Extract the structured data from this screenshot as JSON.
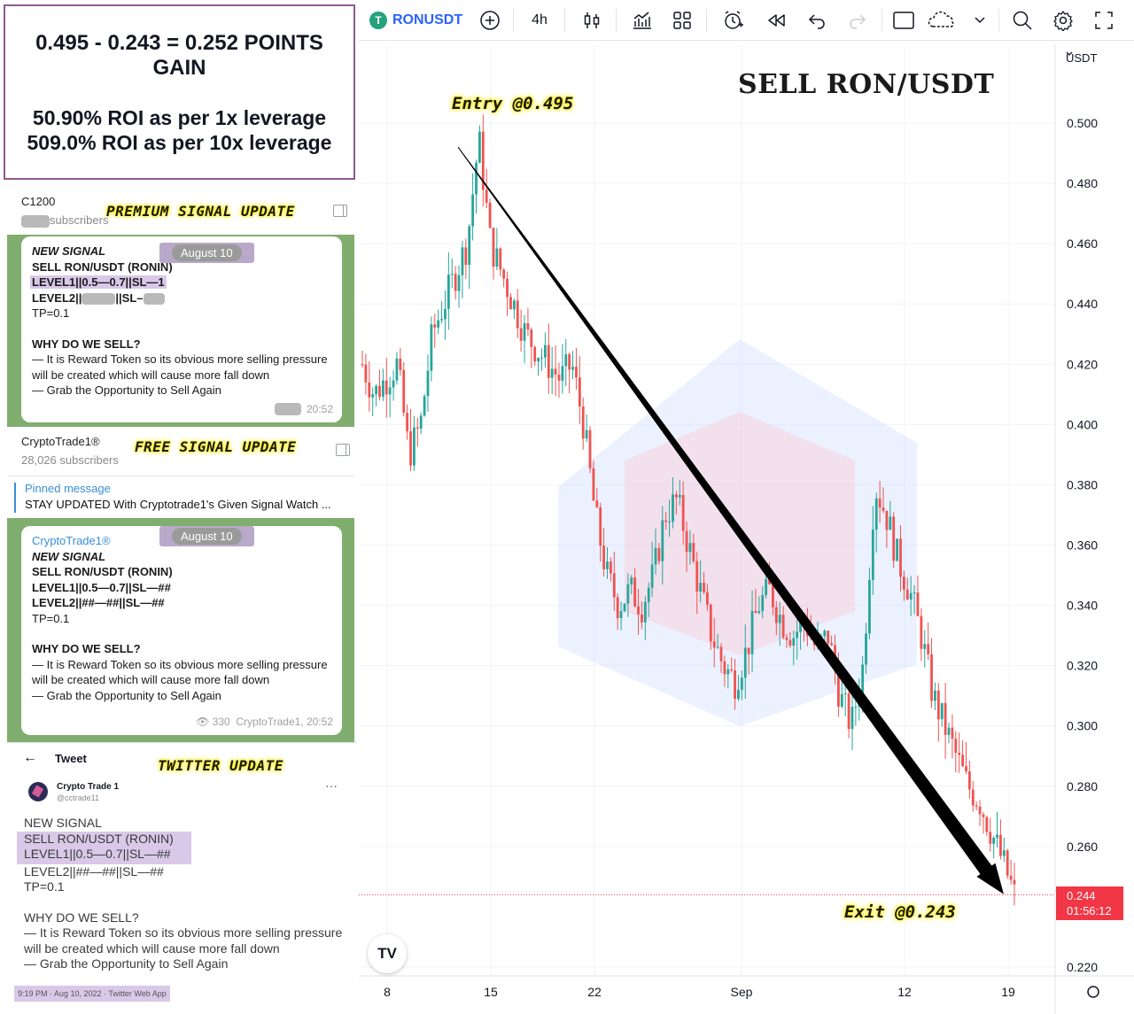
{
  "summary": {
    "line1": "0.495 - 0.243 = 0.252 POINTS GAIN",
    "line3": "50.90% ROI as per 1x leverage",
    "line4": "509.0% ROI as per 10x leverage"
  },
  "premium": {
    "channel": "C1200",
    "subscribers_label": "subscribers",
    "overlay": "PREMIUM SIGNAL UPDATE",
    "date": "August 10",
    "lines": [
      "NEW SIGNAL",
      "SELL RON/USDT (RONIN)",
      "LEVEL1||0.5—0.7||SL—1",
      "LEVEL2||",
      "||SL–",
      "TP=0.1",
      "WHY DO WE SELL?",
      "— It is Reward Token so its obvious more selling pressure will be created which will cause more fall down",
      "— Grab the Opportunity to Sell Again"
    ],
    "time": "20:52"
  },
  "free": {
    "channel": "CryptoTrade1®",
    "subscribers": "28,026 subscribers",
    "overlay": "FREE SIGNAL UPDATE",
    "pinned_title": "Pinned message",
    "pinned_text": "STAY UPDATED With Cryptotrade1's Given Signal  Watch ...",
    "date": "August 10",
    "sender": "CryptoTrade1®",
    "lines": [
      "NEW SIGNAL",
      "SELL RON/USDT (RONIN)",
      "LEVEL1||0.5—0.7||SL—##",
      "LEVEL2||##—##||SL—##",
      "TP=0.1",
      "WHY DO WE SELL?",
      "— It is Reward Token so its obvious more selling pressure will be created which will cause more fall down",
      "— Grab the Opportunity to Sell Again"
    ],
    "views": "330",
    "footer": "CryptoTrade1, 20:52"
  },
  "twitter": {
    "back": "←",
    "title": "Tweet",
    "overlay": "TWITTER UPDATE",
    "user": "Crypto Trade 1",
    "handle": "@cctrade11",
    "dots": "···",
    "lines": [
      "NEW SIGNAL",
      "SELL RON/USDT (RONIN)",
      "LEVEL1||0.5—0.7||SL—##",
      "LEVEL2||##—##||SL—##",
      "TP=0.1",
      "WHY DO WE SELL?",
      "— It is Reward Token so its obvious more selling pressure will be created which will cause more fall down",
      "— Grab the Opportunity to Sell Again"
    ],
    "meta": "9:19 PM · Aug 10, 2022 · Twitter Web App"
  },
  "toolbar": {
    "symbol": "RONUSDT",
    "coin_glyph": "T",
    "interval": "4h",
    "icons": [
      "plus-circle-icon",
      "candles-icon",
      "indicators-icon",
      "layout-icon",
      "alert-icon",
      "replay-icon",
      "undo-icon",
      "redo-icon",
      "rectangle-icon",
      "cloud-icon",
      "chevron-down-icon",
      "search-icon",
      "gear-icon",
      "fullscreen-icon"
    ]
  },
  "chart": {
    "title": "SELL RON/USDT",
    "entry_label": "Entry @0.495",
    "exit_label": "Exit @0.243",
    "currency": "USDT",
    "price_badge": "0.244",
    "countdown": "01:56:12",
    "tv_logo": "TV",
    "y_ticks": [
      "0.500",
      "0.480",
      "0.460",
      "0.440",
      "0.420",
      "0.400",
      "0.380",
      "0.360",
      "0.340",
      "0.320",
      "0.300",
      "0.280",
      "0.260",
      "0.220"
    ],
    "x_ticks": [
      "8",
      "15",
      "22",
      "Sep",
      "12",
      "19"
    ],
    "up_color": "#26a69a",
    "down_color": "#ef5350"
  },
  "chart_data": {
    "type": "candlestick",
    "title": "SELL RON/USDT",
    "ylim": [
      0.215,
      0.51
    ],
    "y_ticks": [
      0.5,
      0.48,
      0.46,
      0.44,
      0.42,
      0.4,
      0.38,
      0.36,
      0.34,
      0.32,
      0.3,
      0.28,
      0.26,
      0.22
    ],
    "x_ticks": [
      "8",
      "15",
      "22",
      "Sep",
      "12",
      "19"
    ],
    "close_path": [
      0.42,
      0.41,
      0.415,
      0.42,
      0.39,
      0.4,
      0.43,
      0.44,
      0.45,
      0.46,
      0.495,
      0.46,
      0.45,
      0.44,
      0.43,
      0.425,
      0.42,
      0.415,
      0.42,
      0.4,
      0.37,
      0.35,
      0.34,
      0.345,
      0.34,
      0.35,
      0.37,
      0.375,
      0.36,
      0.345,
      0.33,
      0.32,
      0.315,
      0.325,
      0.34,
      0.345,
      0.335,
      0.33,
      0.335,
      0.325,
      0.33,
      0.31,
      0.3,
      0.32,
      0.38,
      0.37,
      0.355,
      0.345,
      0.33,
      0.31,
      0.3,
      0.29,
      0.28,
      0.275,
      0.265,
      0.255,
      0.244
    ],
    "entry": 0.495,
    "exit": 0.243,
    "last_price": 0.244
  }
}
